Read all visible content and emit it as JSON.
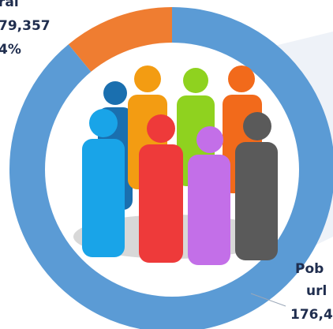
{
  "chart_data": {
    "type": "donut",
    "categories": [
      "Rural",
      "Urbana"
    ],
    "values": [
      11,
      89
    ],
    "colors": [
      "#ef7d31",
      "#5b9bd5"
    ],
    "annotations": [
      {
        "lines": [
          "ral",
          "79,357",
          "4%"
        ]
      },
      {
        "lines": [
          "Pob",
          "url",
          "176,4"
        ]
      }
    ]
  }
}
